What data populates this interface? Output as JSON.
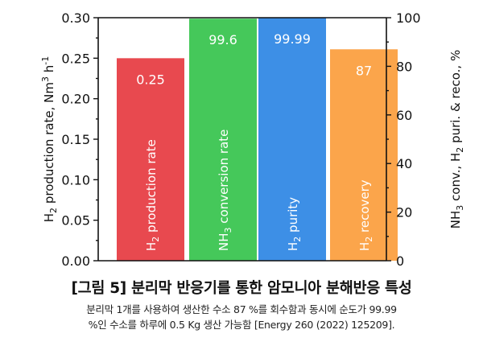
{
  "chart_data": {
    "type": "bar",
    "categories": [
      "H₂ production rate",
      "NH₃ conversion rate",
      "H₂ purity",
      "H₂ recovery"
    ],
    "bars": [
      {
        "label": "H₂ production rate",
        "axis": "left",
        "value": 0.25,
        "value_label": "0.25",
        "color": "#e8494f"
      },
      {
        "label": "NH₃ conversion rate",
        "axis": "right",
        "value": 99.6,
        "value_label": "99.6",
        "color": "#45c85a"
      },
      {
        "label": "H₂ purity",
        "axis": "right",
        "value": 99.99,
        "value_label": "99.99",
        "color": "#3d8fe6"
      },
      {
        "label": "H₂ recovery",
        "axis": "right",
        "value": 87,
        "value_label": "87",
        "color": "#fba54b"
      }
    ],
    "left_axis": {
      "label_parts": [
        "H",
        "2",
        " production rate, Nm",
        "3",
        " h",
        "-1"
      ],
      "ylim": [
        0.0,
        0.3
      ],
      "ticks": [
        "0.00",
        "0.05",
        "0.10",
        "0.15",
        "0.20",
        "0.25",
        "0.30"
      ]
    },
    "right_axis": {
      "label_parts": [
        "NH",
        "3",
        " conv., H",
        "2",
        " puri. & reco., %"
      ],
      "ylim": [
        0,
        100
      ],
      "ticks": [
        "0",
        "20",
        "40",
        "60",
        "80",
        "100"
      ]
    },
    "legend": "none",
    "grid": false
  },
  "caption": {
    "title": "[그림 5] 분리막 반응기를 통한 암모니아 분해반응 특성",
    "line1": "분리막 1개를 사용하여 생산한 수소 87 %를 회수함과 동시에 순도가 99.99",
    "line2": "%인 수소를 하루에 0.5 Kg 생산 가능함 [Energy 260 (2022) 125209]."
  }
}
